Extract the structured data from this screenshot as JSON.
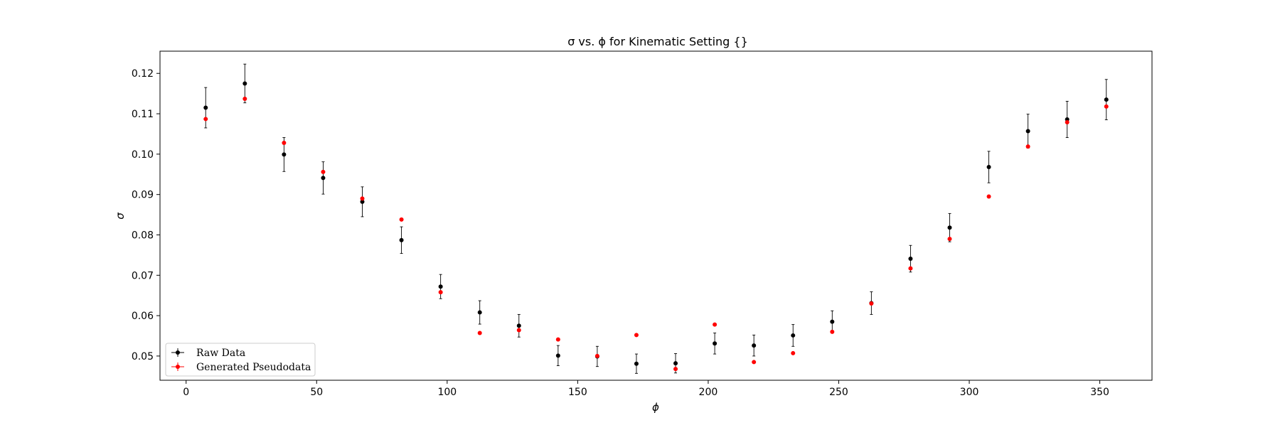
{
  "chart_data": {
    "type": "scatter",
    "title": "σ vs. ϕ for Kinematic Setting {}",
    "xlabel": "ϕ",
    "ylabel": "σ",
    "xlim": [
      -10,
      370
    ],
    "ylim": [
      0.044,
      0.1255
    ],
    "xticks": [
      0,
      50,
      100,
      150,
      200,
      250,
      300,
      350
    ],
    "yticks": [
      0.05,
      0.06,
      0.07,
      0.08,
      0.09,
      0.1,
      0.11,
      0.12
    ],
    "ytick_labels": [
      "0.05",
      "0.06",
      "0.07",
      "0.08",
      "0.09",
      "0.10",
      "0.11",
      "0.12"
    ],
    "grid": false,
    "legend_position": "lower-left",
    "series": [
      {
        "name": "Raw Data",
        "color": "#000000",
        "x": [
          7.5,
          22.5,
          37.5,
          52.5,
          67.5,
          82.5,
          97.5,
          112.5,
          127.5,
          142.5,
          157.5,
          172.5,
          187.5,
          202.5,
          217.5,
          232.5,
          247.5,
          262.5,
          277.5,
          292.5,
          307.5,
          322.5,
          337.5,
          352.5
        ],
        "y": [
          0.1115,
          0.1175,
          0.0999,
          0.0941,
          0.0882,
          0.0787,
          0.0672,
          0.0608,
          0.0575,
          0.0501,
          0.0499,
          0.0481,
          0.0482,
          0.0531,
          0.0526,
          0.0551,
          0.0585,
          0.0631,
          0.0741,
          0.0818,
          0.0968,
          0.1057,
          0.1086,
          0.1135
        ],
        "yerr": [
          0.005,
          0.0048,
          0.0042,
          0.004,
          0.0037,
          0.0033,
          0.003,
          0.0029,
          0.0028,
          0.0025,
          0.0025,
          0.0024,
          0.0024,
          0.0026,
          0.0026,
          0.0027,
          0.0027,
          0.0028,
          0.0033,
          0.0035,
          0.0039,
          0.0042,
          0.0045,
          0.005
        ]
      },
      {
        "name": "Generated Pseudodata",
        "color": "#ff0000",
        "x": [
          7.5,
          22.5,
          37.5,
          52.5,
          67.5,
          82.5,
          97.5,
          112.5,
          127.5,
          142.5,
          157.5,
          172.5,
          187.5,
          202.5,
          217.5,
          232.5,
          247.5,
          262.5,
          277.5,
          292.5,
          307.5,
          322.5,
          337.5,
          352.5
        ],
        "y": [
          0.1087,
          0.1137,
          0.1028,
          0.0956,
          0.089,
          0.0838,
          0.0658,
          0.0557,
          0.0564,
          0.0541,
          0.05,
          0.0552,
          0.0468,
          0.0578,
          0.0485,
          0.0507,
          0.056,
          0.063,
          0.0717,
          0.079,
          0.0895,
          0.1019,
          0.1079,
          0.1118
        ]
      }
    ]
  }
}
